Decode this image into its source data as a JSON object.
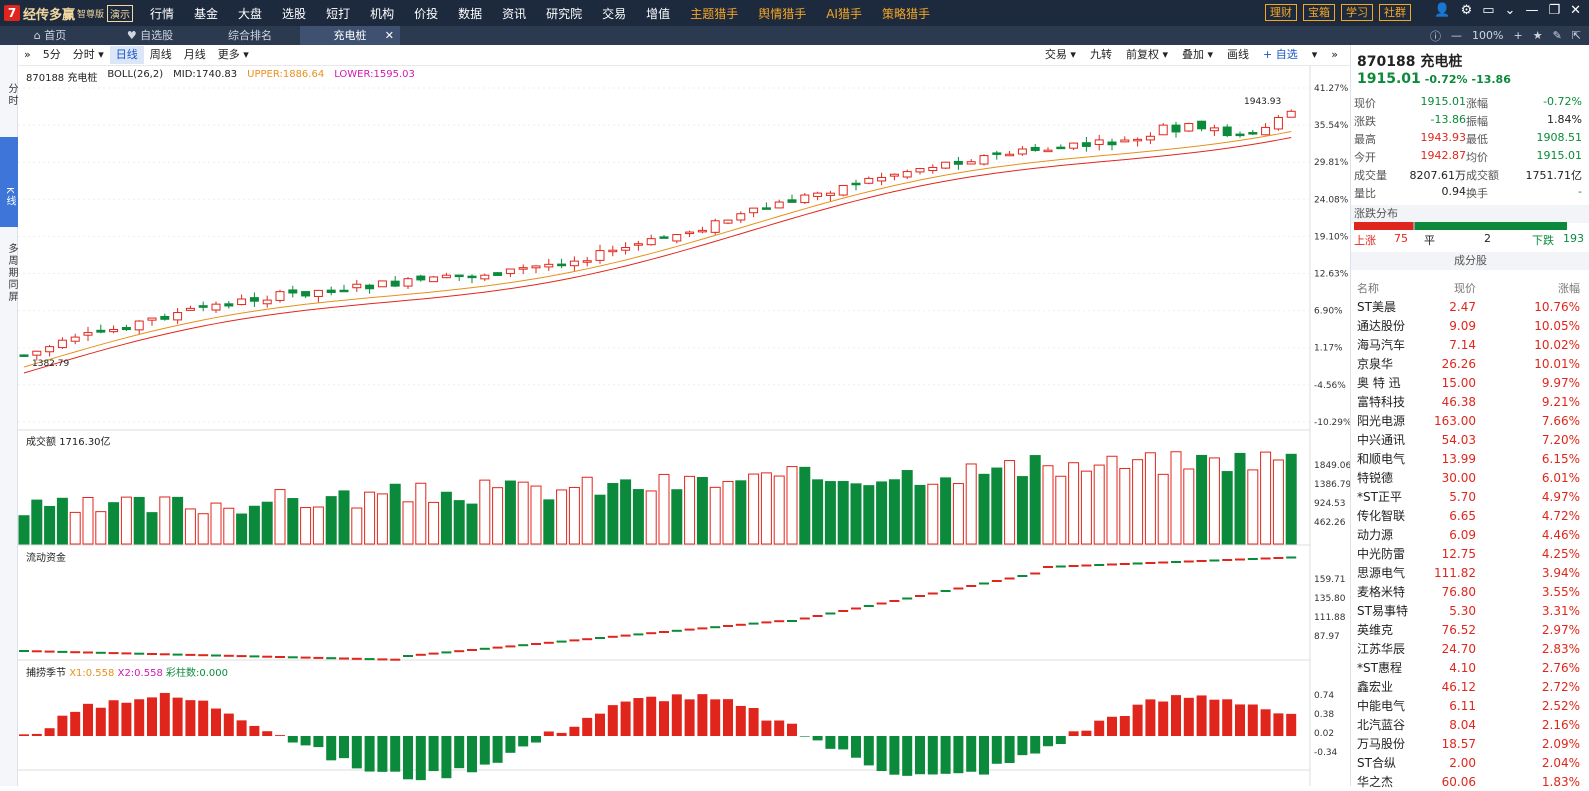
{
  "app": {
    "logo_mark": "7",
    "name": "经传多赢",
    "edition": "智尊版",
    "demo": "演示"
  },
  "menu": [
    "行情",
    "基金",
    "大盘",
    "选股",
    "短打",
    "机构",
    "价投",
    "数据",
    "资讯",
    "研究院",
    "交易",
    "增值",
    "主题猎手",
    "舆情猎手",
    "AI猎手",
    "策略猎手"
  ],
  "top_buttons": [
    "理财",
    "宝箱",
    "学习",
    "社群"
  ],
  "tabs": [
    {
      "label": "首页"
    },
    {
      "label": "自选股"
    },
    {
      "label": "综合排名"
    },
    {
      "label": "充电桩"
    }
  ],
  "zoom": "100%",
  "left_strip": {
    "fenshi": "分时",
    "kline": "K线",
    "multi": "多周期同屏"
  },
  "toolbar": {
    "periods": [
      "5分",
      "分时",
      "日线",
      "周线",
      "月线",
      "更多"
    ],
    "right": [
      "交易",
      "九转",
      "前复权",
      "叠加",
      "画线",
      "+ 自选"
    ]
  },
  "chart_data": [
    {
      "type": "candlestick",
      "title": "870188 充电桩",
      "indicator": "BOLL(26,2)",
      "mid": "MID:1740.83",
      "upper": "UPPER:1886.64",
      "lower": "LOWER:1595.03",
      "high_label": "1943.93",
      "low_label": "1382.79",
      "y_ticks": [
        "41.27%",
        "35.54%",
        "29.81%",
        "24.08%",
        "19.10%",
        "12.63%",
        "6.90%",
        "1.17%",
        "-4.56%",
        "-10.29%"
      ]
    },
    {
      "type": "bar",
      "title": "成交额",
      "value": "1716.30亿",
      "y_ticks": [
        "1849.06",
        "1386.79",
        "924.53",
        "462.26"
      ],
      "unit": "X亿"
    },
    {
      "type": "bar",
      "title": "流动资金",
      "y_ticks": [
        "159.71",
        "135.80",
        "111.88",
        "87.97"
      ],
      "unit": "X亿"
    },
    {
      "type": "bar",
      "title": "捕捞季节",
      "x1": "X1:0.558",
      "x2": "X2:0.558",
      "col": "彩柱数:0.000",
      "y_ticks": [
        "0.74",
        "0.38",
        "0.02",
        "-0.34"
      ]
    }
  ],
  "panel": {
    "code": "870188 充电桩",
    "price": "1915.01",
    "chg_pct": "-0.72%",
    "chg": "-13.86",
    "quote": [
      [
        "现价",
        "1915.01",
        "涨幅",
        "-0.72%"
      ],
      [
        "涨跌",
        "-13.86",
        "振幅",
        "1.84%"
      ],
      [
        "最高",
        "1943.93",
        "最低",
        "1908.51"
      ],
      [
        "今开",
        "1942.87",
        "均价",
        "1915.01"
      ],
      [
        "成交量",
        "8207.61万",
        "成交额",
        "1751.71亿"
      ],
      [
        "量比",
        "0.94",
        "换手",
        "-"
      ]
    ],
    "dist_title": "涨跌分布",
    "up_label": "上涨",
    "up": "75",
    "flat_label": "平",
    "flat": "2",
    "down_label": "下跌",
    "down": "193",
    "comp_title": "成分股",
    "comp_head": [
      "名称",
      "现价",
      "涨幅"
    ],
    "stocks": [
      [
        "ST美晨",
        "2.47",
        "10.76%"
      ],
      [
        "通达股份",
        "9.09",
        "10.05%"
      ],
      [
        "海马汽车",
        "7.14",
        "10.02%"
      ],
      [
        "京泉华",
        "26.26",
        "10.01%"
      ],
      [
        "奥 特 迅",
        "15.00",
        "9.97%"
      ],
      [
        "富特科技",
        "46.38",
        "9.21%"
      ],
      [
        "阳光电源",
        "163.00",
        "7.66%"
      ],
      [
        "中兴通讯",
        "54.03",
        "7.20%"
      ],
      [
        "和顺电气",
        "13.99",
        "6.15%"
      ],
      [
        "特锐德",
        "30.00",
        "6.01%"
      ],
      [
        "*ST正平",
        "5.70",
        "4.97%"
      ],
      [
        "传化智联",
        "6.65",
        "4.72%"
      ],
      [
        "动力源",
        "6.09",
        "4.46%"
      ],
      [
        "中光防雷",
        "12.75",
        "4.25%"
      ],
      [
        "思源电气",
        "111.82",
        "3.94%"
      ],
      [
        "麦格米特",
        "76.80",
        "3.55%"
      ],
      [
        "ST易事特",
        "5.30",
        "3.31%"
      ],
      [
        "英维克",
        "76.52",
        "2.97%"
      ],
      [
        "江苏华辰",
        "24.70",
        "2.83%"
      ],
      [
        "*ST惠程",
        "4.10",
        "2.76%"
      ],
      [
        "鑫宏业",
        "46.12",
        "2.72%"
      ],
      [
        "中能电气",
        "6.11",
        "2.52%"
      ],
      [
        "北汽蓝谷",
        "8.04",
        "2.16%"
      ],
      [
        "万马股份",
        "18.57",
        "2.09%"
      ],
      [
        "ST合纵",
        "2.00",
        "2.04%"
      ],
      [
        "华之杰",
        "60.06",
        "1.83%"
      ]
    ]
  },
  "colors": {
    "up": "#e0261c",
    "down": "#0a8a3a",
    "accent": "#3d76d8",
    "bg_top": "#1d2a3e"
  }
}
